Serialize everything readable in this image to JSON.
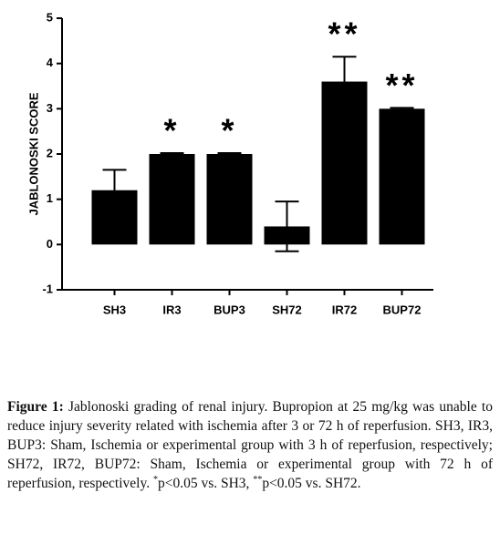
{
  "chart_data": {
    "type": "bar",
    "ylabel": "JABLONOSKI SCORE",
    "categories": [
      "SH3",
      "IR3",
      "BUP3",
      "SH72",
      "IR72",
      "BUP72"
    ],
    "values": [
      1.2,
      2.0,
      2.0,
      0.4,
      3.6,
      3.0
    ],
    "errors": [
      0.45,
      0.02,
      0.02,
      0.55,
      0.55,
      0.02
    ],
    "significance": [
      null,
      "*",
      "*",
      null,
      "**",
      "**"
    ],
    "color": "#000000",
    "ylim": [
      -1,
      5
    ],
    "yticks": [
      -1,
      0,
      1,
      2,
      3,
      4,
      5
    ]
  },
  "caption": {
    "label": "Figure 1:",
    "parts": [
      " Jablonoski grading of renal injury. Bupropion at 25 mg/kg was unable to reduce injury severity related with ischemia after 3 or 72 h of reperfusion. SH3, IR3, BUP3: Sham, Ischemia or experimental group with 3 h of reperfusion, respectively; SH72, IR72, BUP72: Sham, Ischemia or experimental group with 72 h of reperfusion, respectively. ",
      "*",
      "p<0.05 vs. SH3, ",
      "**",
      "p<0.05 vs. SH72."
    ]
  }
}
